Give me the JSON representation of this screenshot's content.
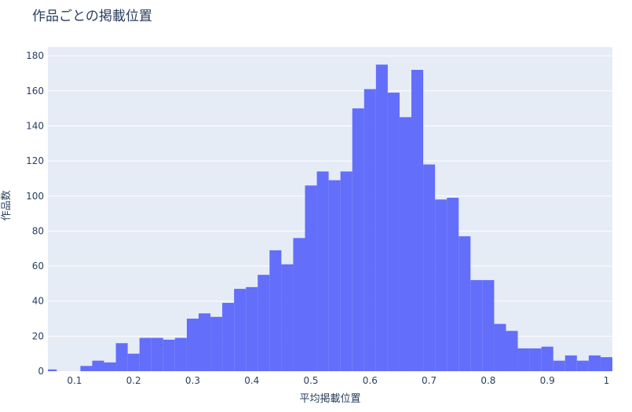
{
  "chart_data": {
    "type": "bar",
    "title": "作品ごとの掲載位置",
    "xlabel": "平均掲載位置",
    "ylabel": "作品数",
    "xlim": [
      0.055,
      1.01
    ],
    "ylim": [
      0,
      185
    ],
    "x_ticks": [
      "0.1",
      "0.2",
      "0.3",
      "0.4",
      "0.5",
      "0.6",
      "0.7",
      "0.8",
      "0.9",
      "1"
    ],
    "y_ticks": [
      "0",
      "20",
      "40",
      "60",
      "80",
      "100",
      "120",
      "140",
      "160",
      "180"
    ],
    "bin_width": 0.02,
    "bin_start": 0.05,
    "values": [
      1,
      0,
      0,
      3,
      6,
      5,
      16,
      10,
      19,
      19,
      18,
      19,
      30,
      33,
      31,
      39,
      47,
      48,
      55,
      69,
      61,
      76,
      106,
      114,
      109,
      114,
      150,
      161,
      175,
      159,
      145,
      172,
      118,
      98,
      99,
      77,
      52,
      52,
      27,
      23,
      13,
      13,
      14,
      6,
      9,
      6,
      9,
      8
    ],
    "bar_color": "#636efa",
    "plot_bg": "#e5ecf6",
    "grid": true
  }
}
